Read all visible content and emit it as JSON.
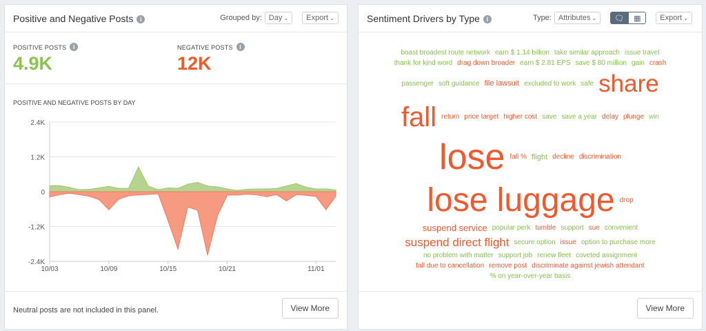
{
  "colors": {
    "positive": "#8dc353",
    "negative": "#f15a24",
    "positive_fill": "#b6d48f",
    "negative_fill": "#f69a82"
  },
  "left": {
    "title": "Positive and Negative Posts",
    "grouped_label": "Grouped by:",
    "grouped_value": "Day",
    "export_label": "Export",
    "positive_label": "POSITIVE POSTS",
    "positive_value": "4.9K",
    "negative_label": "NEGATIVE POSTS",
    "negative_value": "12K",
    "footer_text": "Neutral posts are not included in this panel.",
    "view_more": "View More"
  },
  "chart_data": {
    "type": "area",
    "title": "POSITIVE AND NEGATIVE POSTS BY DAY",
    "ylim": [
      -2400,
      2400
    ],
    "yticks": [
      "2.4K",
      "1.2K",
      "0",
      "-1.2K",
      "-2.4K"
    ],
    "ytick_values": [
      2400,
      1200,
      0,
      -1200,
      -2400
    ],
    "xticks": [
      "10/03",
      "10/09",
      "10/15",
      "10/21",
      "11/01"
    ],
    "xtick_index": [
      0,
      6,
      12,
      18,
      27
    ],
    "grid": true,
    "series": [
      {
        "name": "Positive",
        "values": [
          210,
          210,
          150,
          70,
          80,
          130,
          185,
          115,
          115,
          850,
          195,
          70,
          130,
          115,
          255,
          320,
          195,
          165,
          95,
          45,
          85,
          95,
          95,
          110,
          200,
          280,
          155,
          95,
          95,
          60
        ]
      },
      {
        "name": "Negative",
        "values": [
          -180,
          -100,
          -55,
          -100,
          -155,
          -270,
          -620,
          -255,
          -140,
          -110,
          -95,
          -70,
          -1000,
          -1975,
          -525,
          -640,
          -2180,
          -835,
          -115,
          -115,
          -85,
          -110,
          -170,
          -100,
          -320,
          -100,
          -125,
          -165,
          -620,
          -150
        ]
      }
    ]
  },
  "right": {
    "title": "Sentiment Drivers by Type",
    "type_label": "Type:",
    "type_value": "Attributes",
    "view_icons": [
      "speech-bubbles-icon",
      "table-icon"
    ],
    "export_label": "Export",
    "view_more": "View More"
  },
  "cloud": {
    "words": [
      {
        "text": "boast broadest route network",
        "s": "pos"
      },
      {
        "text": "earn $ 1.14 billion",
        "s": "pos"
      },
      {
        "text": "take similar approach",
        "s": "pos"
      },
      {
        "text": "issue travel",
        "s": "pos"
      },
      {
        "text": "thank for kind word",
        "s": "pos"
      },
      {
        "text": "drag down broader",
        "s": "neg"
      },
      {
        "text": "earn $ 2.81 EPS",
        "s": "pos"
      },
      {
        "text": "save $ 80 million",
        "s": "pos"
      },
      {
        "text": "gain",
        "s": "pos"
      },
      {
        "text": "crash",
        "s": "neg"
      },
      {
        "text": "passenger",
        "s": "pos"
      },
      {
        "text": "soft guidance",
        "s": "pos"
      },
      {
        "text": "file lawsuit",
        "s": "neg"
      },
      {
        "text": "share",
        "s": "neg"
      },
      {
        "text": "fall",
        "s": "neg"
      },
      {
        "text": "excluded to work",
        "s": "pos"
      },
      {
        "text": "return",
        "s": "neg"
      },
      {
        "text": "price target",
        "s": "neg"
      },
      {
        "text": "safe",
        "s": "pos"
      },
      {
        "text": "higher cost",
        "s": "neg"
      },
      {
        "text": "save",
        "s": "pos"
      },
      {
        "text": "save a year",
        "s": "pos"
      },
      {
        "text": "delay",
        "s": "neg"
      },
      {
        "text": "lose",
        "s": "neg"
      },
      {
        "text": "plunge",
        "s": "neg"
      },
      {
        "text": "win",
        "s": "pos"
      },
      {
        "text": "fall %",
        "s": "neg"
      },
      {
        "text": "flight",
        "s": "pos"
      },
      {
        "text": "decline",
        "s": "neg"
      },
      {
        "text": "suspend service",
        "s": "neg"
      },
      {
        "text": "discrimination",
        "s": "neg"
      },
      {
        "text": "drop",
        "s": "neg"
      },
      {
        "text": "lose luggage",
        "s": "neg"
      },
      {
        "text": "popular perk",
        "s": "pos"
      },
      {
        "text": "tumble",
        "s": "neg"
      },
      {
        "text": "support",
        "s": "pos"
      },
      {
        "text": "sue",
        "s": "neg"
      },
      {
        "text": "convenient",
        "s": "pos"
      },
      {
        "text": "suspend direct flight",
        "s": "neg"
      },
      {
        "text": "secure option",
        "s": "pos"
      },
      {
        "text": "issue",
        "s": "neg"
      },
      {
        "text": "option to purchase more",
        "s": "pos"
      },
      {
        "text": "no problem with matter",
        "s": "pos"
      },
      {
        "text": "support job",
        "s": "pos"
      },
      {
        "text": "renew fleet",
        "s": "pos"
      },
      {
        "text": "coveted assignment",
        "s": "pos"
      },
      {
        "text": "fall due to cancellation",
        "s": "neg"
      },
      {
        "text": "remove post",
        "s": "neg"
      },
      {
        "text": "discriminate against jewish attendant",
        "s": "neg"
      },
      {
        "text": "% on year-over-year basis",
        "s": "pos"
      }
    ]
  }
}
